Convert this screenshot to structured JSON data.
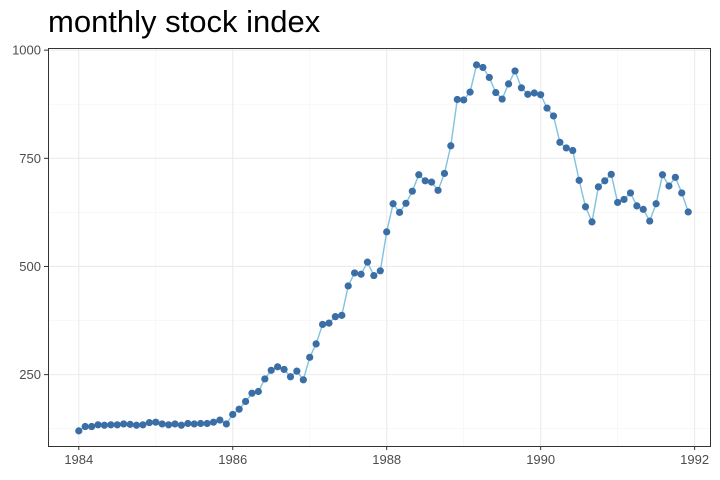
{
  "chart_data": {
    "type": "line",
    "title": "monthly stock index",
    "xlabel": "",
    "ylabel": "",
    "xlim": [
      1983.6,
      1992.2
    ],
    "ylim": [
      85,
      1005
    ],
    "x_ticks": [
      1984,
      1986,
      1988,
      1990,
      1992
    ],
    "x_tick_labels": [
      "1984",
      "1986",
      "1988",
      "1990",
      "1992"
    ],
    "y_ticks": [
      250,
      500,
      750,
      1000
    ],
    "y_tick_labels": [
      "250",
      "500",
      "750",
      "1000"
    ],
    "grid": true,
    "legend": "none",
    "colors": {
      "line": "#7ec3df",
      "point": "#3a6ea5",
      "panel_border": "#333333",
      "grid_major": "#ebebeb",
      "grid_minor": "#f3f3f3"
    },
    "series": [
      {
        "x": [
          1984.0,
          1984.083,
          1984.167,
          1984.25,
          1984.333,
          1984.417,
          1984.5,
          1984.583,
          1984.667,
          1984.75,
          1984.833,
          1984.917,
          1985.0,
          1985.083,
          1985.167,
          1985.25,
          1985.333,
          1985.417,
          1985.5,
          1985.583,
          1985.667,
          1985.75,
          1985.833,
          1985.917,
          1986.0,
          1986.083,
          1986.167,
          1986.25,
          1986.333,
          1986.417,
          1986.5,
          1986.583,
          1986.667,
          1986.75,
          1986.833,
          1986.917,
          1987.0,
          1987.083,
          1987.167,
          1987.25,
          1987.333,
          1987.417,
          1987.5,
          1987.583,
          1987.667,
          1987.75,
          1987.833,
          1987.917,
          1988.0,
          1988.083,
          1988.167,
          1988.25,
          1988.333,
          1988.417,
          1988.5,
          1988.583,
          1988.667,
          1988.75,
          1988.833,
          1988.917,
          1989.0,
          1989.083,
          1989.167,
          1989.25,
          1989.333,
          1989.417,
          1989.5,
          1989.583,
          1989.667,
          1989.75,
          1989.833,
          1989.917,
          1990.0,
          1990.083,
          1990.167,
          1990.25,
          1990.333,
          1990.417,
          1990.5,
          1990.583,
          1990.667,
          1990.75,
          1990.833,
          1990.917,
          1991.0,
          1991.083,
          1991.167,
          1991.25,
          1991.333,
          1991.417,
          1991.5,
          1991.583,
          1991.667,
          1991.75,
          1991.833,
          1991.917
        ],
        "y": [
          120,
          130,
          130,
          134,
          133,
          134,
          134,
          136,
          135,
          133,
          134,
          139,
          140,
          136,
          134,
          136,
          133,
          137,
          136,
          137,
          137,
          140,
          145,
          136,
          158,
          170,
          188,
          207,
          211,
          240,
          260,
          268,
          262,
          245,
          258,
          238,
          290,
          321,
          366,
          369,
          384,
          387,
          455,
          485,
          482,
          510,
          479,
          490,
          580,
          645,
          625,
          646,
          674,
          712,
          698,
          695,
          676,
          715,
          779,
          886,
          885,
          903,
          966,
          960,
          937,
          902,
          887,
          922,
          952,
          913,
          898,
          901,
          897,
          866,
          848,
          787,
          774,
          768,
          699,
          638,
          603,
          684,
          698,
          713,
          648,
          655,
          670,
          640,
          632,
          605,
          645,
          712,
          686,
          706,
          670,
          626
        ]
      }
    ]
  }
}
